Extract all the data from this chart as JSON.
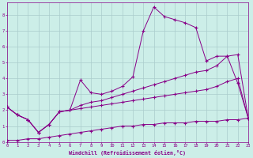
{
  "title": "",
  "xlabel": "Windchill (Refroidissement éolien,°C)",
  "bg_color": "#cceee8",
  "grid_color": "#aacccc",
  "line_color": "#880088",
  "x_ticks": [
    0,
    1,
    2,
    3,
    4,
    5,
    6,
    7,
    8,
    9,
    10,
    11,
    12,
    13,
    14,
    15,
    16,
    17,
    18,
    19,
    20,
    21,
    22,
    23
  ],
  "y_ticks": [
    0,
    1,
    2,
    3,
    4,
    5,
    6,
    7,
    8
  ],
  "xlim": [
    0,
    23
  ],
  "ylim": [
    0,
    8.8
  ],
  "line1_x": [
    0,
    1,
    2,
    3,
    4,
    5,
    6,
    7,
    8,
    9,
    10,
    11,
    12,
    13,
    14,
    15,
    16,
    17,
    18,
    19,
    20,
    21,
    22,
    23
  ],
  "line1_y": [
    2.2,
    1.7,
    1.4,
    0.6,
    1.1,
    1.9,
    2.0,
    3.9,
    3.1,
    3.0,
    3.2,
    3.5,
    4.1,
    7.0,
    8.5,
    7.9,
    7.7,
    7.5,
    7.2,
    5.1,
    5.4,
    5.4,
    3.7,
    1.5
  ],
  "line2_x": [
    0,
    1,
    2,
    3,
    4,
    5,
    6,
    7,
    8,
    9,
    10,
    11,
    12,
    13,
    14,
    15,
    16,
    17,
    18,
    19,
    20,
    21,
    22,
    23
  ],
  "line2_y": [
    2.2,
    1.7,
    1.4,
    0.6,
    1.1,
    1.9,
    2.0,
    2.3,
    2.5,
    2.6,
    2.8,
    3.0,
    3.2,
    3.4,
    3.6,
    3.8,
    4.0,
    4.2,
    4.4,
    4.5,
    4.8,
    5.4,
    5.5,
    1.5
  ],
  "line3_x": [
    0,
    1,
    2,
    3,
    4,
    5,
    6,
    7,
    8,
    9,
    10,
    11,
    12,
    13,
    14,
    15,
    16,
    17,
    18,
    19,
    20,
    21,
    22,
    23
  ],
  "line3_y": [
    2.2,
    1.7,
    1.4,
    0.6,
    1.1,
    1.9,
    2.0,
    2.1,
    2.2,
    2.3,
    2.4,
    2.5,
    2.6,
    2.7,
    2.8,
    2.9,
    3.0,
    3.1,
    3.2,
    3.3,
    3.5,
    3.8,
    4.0,
    1.5
  ],
  "line4_x": [
    0,
    1,
    2,
    3,
    4,
    5,
    6,
    7,
    8,
    9,
    10,
    11,
    12,
    13,
    14,
    15,
    16,
    17,
    18,
    19,
    20,
    21,
    22,
    23
  ],
  "line4_y": [
    0.1,
    0.1,
    0.2,
    0.2,
    0.3,
    0.4,
    0.5,
    0.6,
    0.7,
    0.8,
    0.9,
    1.0,
    1.0,
    1.1,
    1.1,
    1.2,
    1.2,
    1.2,
    1.3,
    1.3,
    1.3,
    1.4,
    1.4,
    1.5
  ]
}
